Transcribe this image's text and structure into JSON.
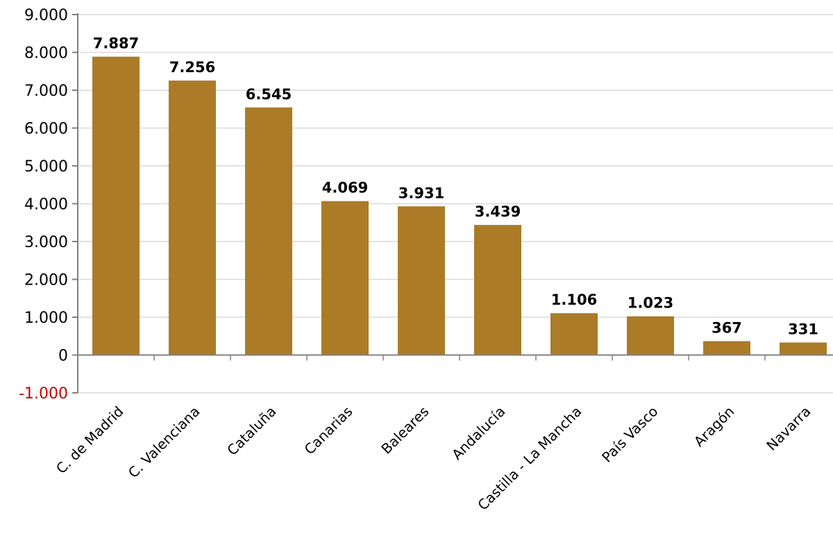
{
  "chart_data": {
    "type": "bar",
    "categories": [
      "C. de Madrid",
      "C. Valenciana",
      "Cataluña",
      "Canarias",
      "Baleares",
      "Andalucía",
      "Castilla - La Mancha",
      "País Vasco",
      "Aragón",
      "Navarra"
    ],
    "values": [
      7887,
      7256,
      6545,
      4069,
      3931,
      3439,
      1106,
      1023,
      367,
      331
    ],
    "data_labels": [
      "7.887",
      "7.256",
      "6.545",
      "4.069",
      "3.931",
      "3.439",
      "1.106",
      "1.023",
      "367",
      "331"
    ],
    "y_ticks": [
      {
        "value": -1000,
        "label": "-1.000"
      },
      {
        "value": 0,
        "label": "0"
      },
      {
        "value": 1000,
        "label": "1.000"
      },
      {
        "value": 2000,
        "label": "2.000"
      },
      {
        "value": 3000,
        "label": "3.000"
      },
      {
        "value": 4000,
        "label": "4.000"
      },
      {
        "value": 5000,
        "label": "5.000"
      },
      {
        "value": 6000,
        "label": "6.000"
      },
      {
        "value": 7000,
        "label": "7.000"
      },
      {
        "value": 8000,
        "label": "8.000"
      },
      {
        "value": 9000,
        "label": "9.000"
      }
    ],
    "ylim": [
      -1000,
      9000
    ],
    "grid": true,
    "legend": "none",
    "title": "",
    "xlabel": "",
    "ylabel": "",
    "colors": {
      "bar": "#AB7B27",
      "negative_tick": "#CC0000",
      "tick": "#000000",
      "grid": "#D9D9D9",
      "axis": "#808080"
    }
  }
}
